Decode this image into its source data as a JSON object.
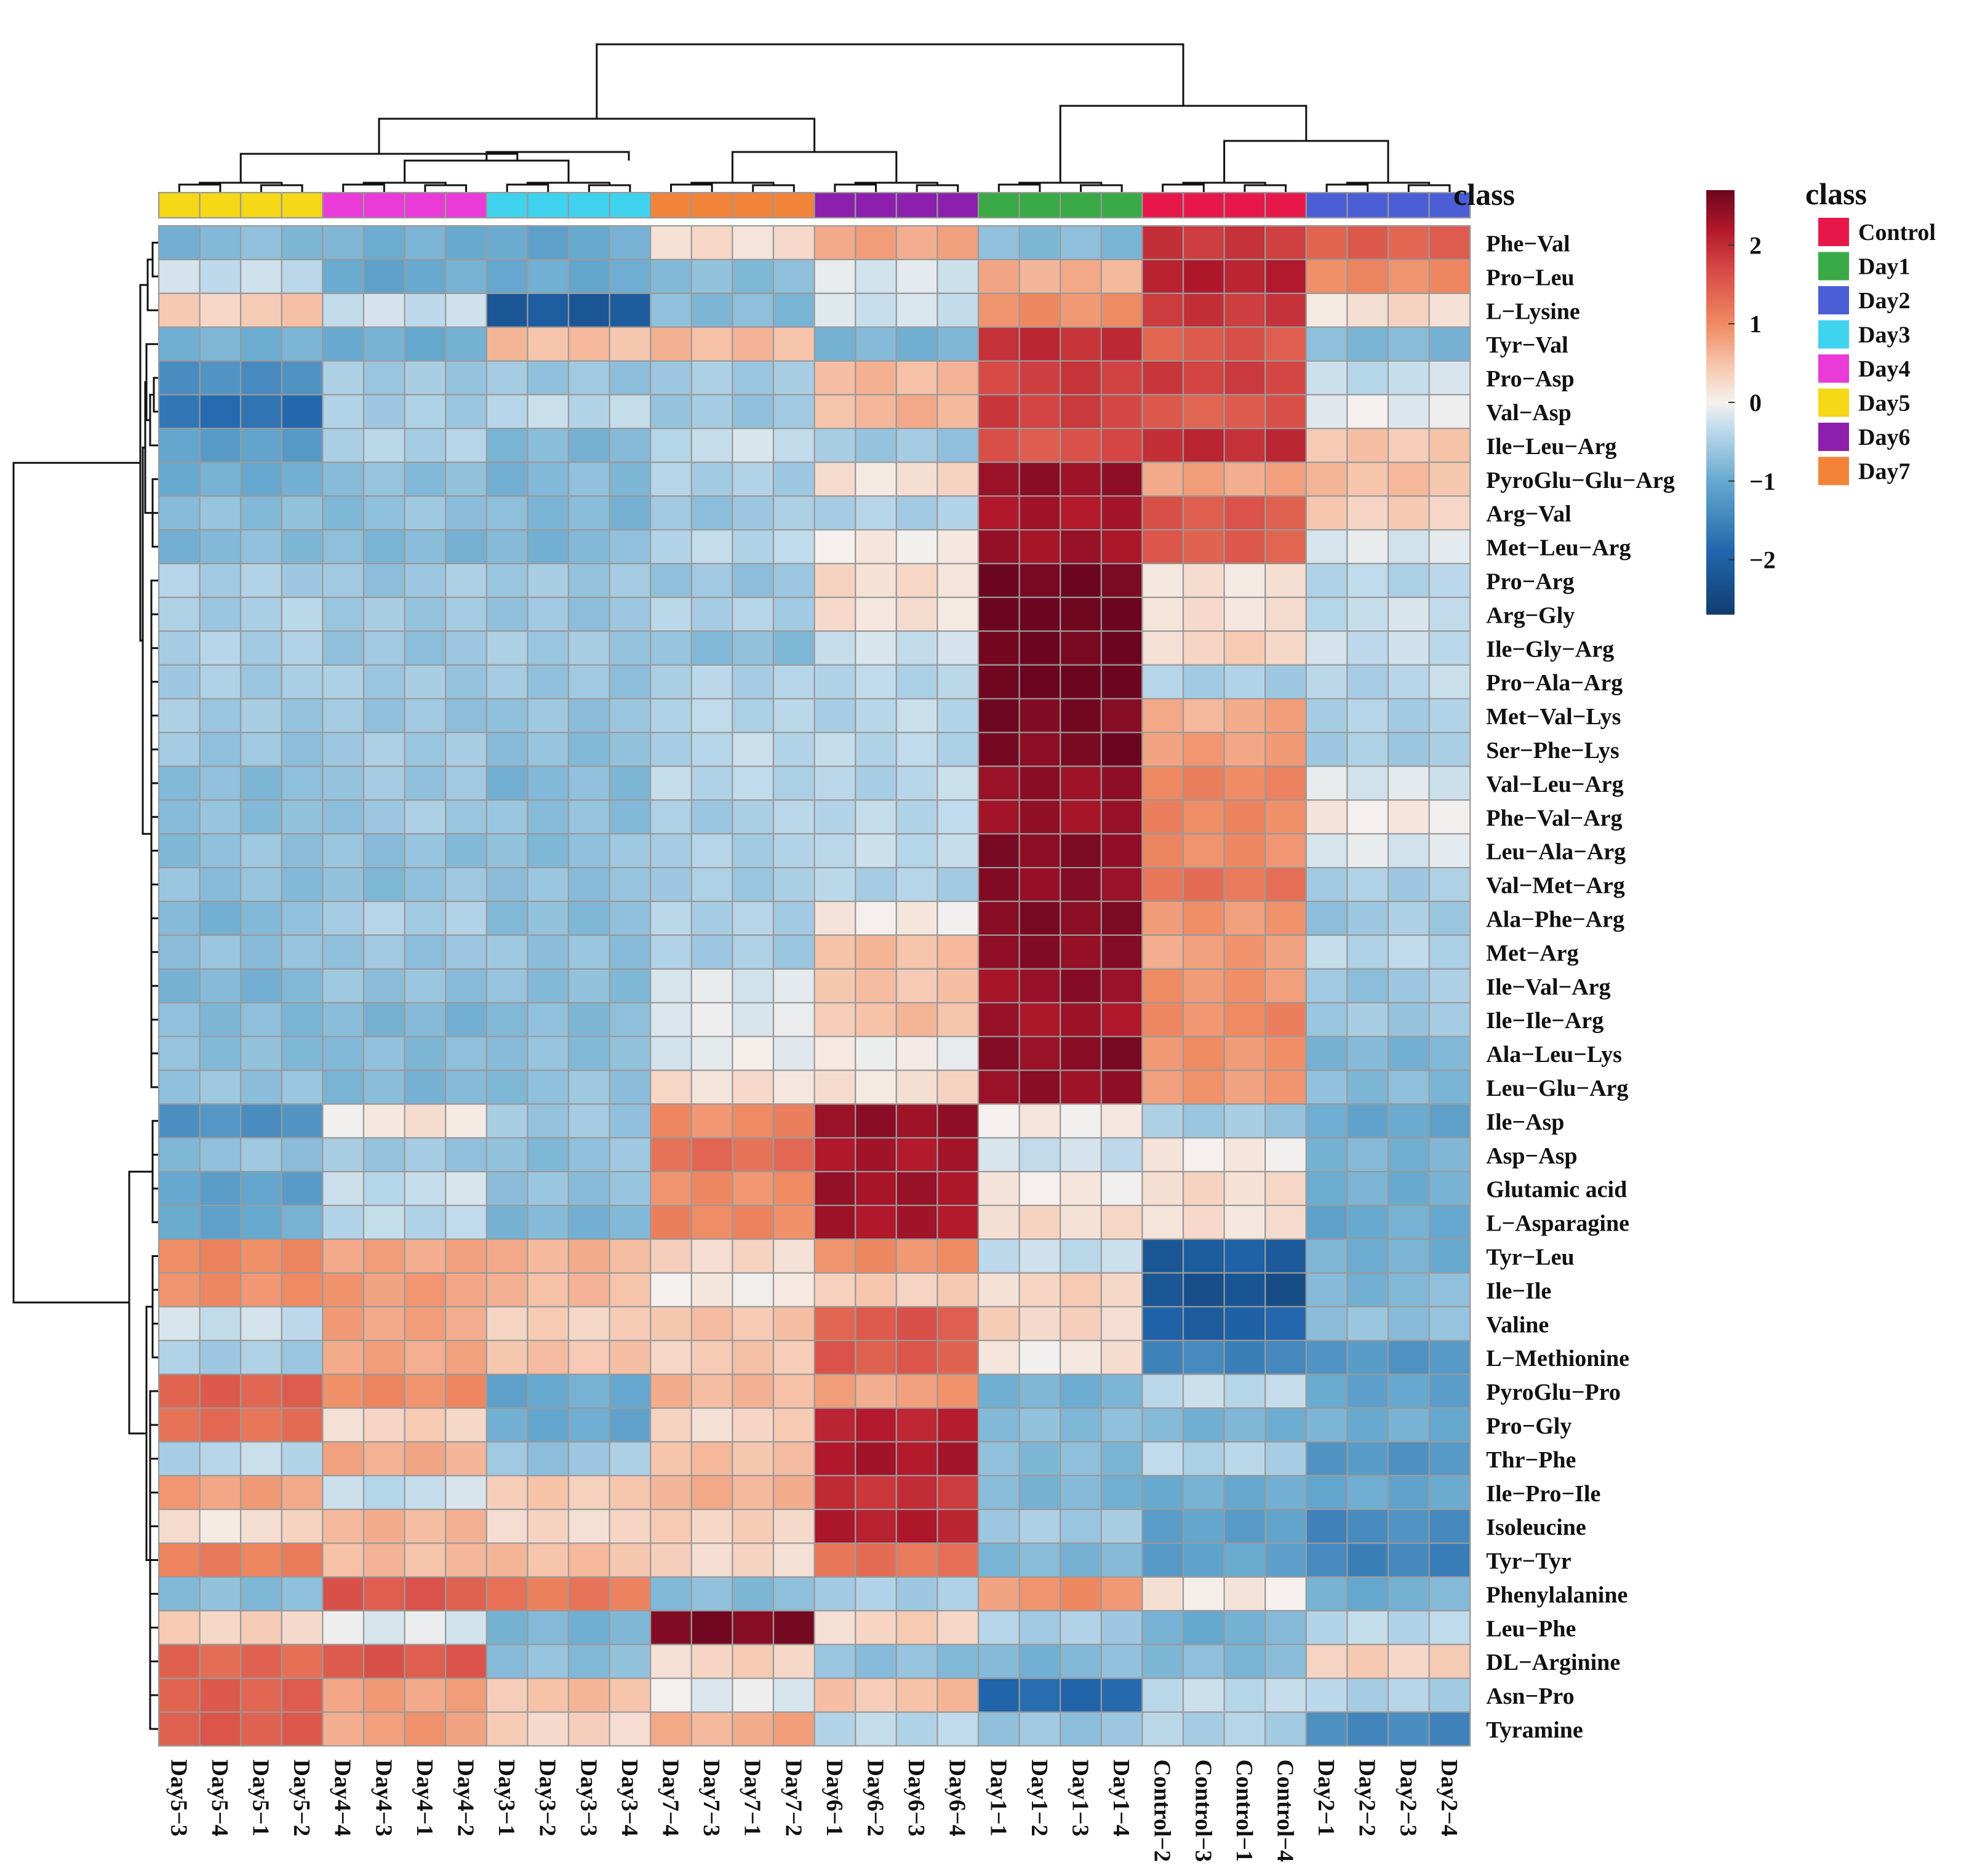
{
  "chart_data": {
    "type": "heatmap",
    "columns": [
      "Day5-3",
      "Day5-4",
      "Day5-1",
      "Day5-2",
      "Day4-4",
      "Day4-3",
      "Day4-1",
      "Day4-2",
      "Day3-1",
      "Day3-2",
      "Day3-3",
      "Day3-4",
      "Day7-4",
      "Day7-3",
      "Day7-1",
      "Day7-2",
      "Day6-1",
      "Day6-2",
      "Day6-3",
      "Day6-4",
      "Day1-1",
      "Day1-2",
      "Day1-3",
      "Day1-4",
      "Control-2",
      "Control-3",
      "Control-1",
      "Control-4",
      "Day2-1",
      "Day2-2",
      "Day2-3",
      "Day2-4"
    ],
    "column_class": [
      "Day5",
      "Day5",
      "Day5",
      "Day5",
      "Day4",
      "Day4",
      "Day4",
      "Day4",
      "Day3",
      "Day3",
      "Day3",
      "Day3",
      "Day7",
      "Day7",
      "Day7",
      "Day7",
      "Day6",
      "Day6",
      "Day6",
      "Day6",
      "Day1",
      "Day1",
      "Day1",
      "Day1",
      "Control",
      "Control",
      "Control",
      "Control",
      "Day2",
      "Day2",
      "Day2",
      "Day2"
    ],
    "rows": [
      "Phe−Val",
      "Pro−Leu",
      "L−Lysine",
      "Tyr−Val",
      "Pro−Asp",
      "Val−Asp",
      "Ile−Leu−Arg",
      "PyroGlu−Glu−Arg",
      "Arg−Val",
      "Met−Leu−Arg",
      "Pro−Arg",
      "Arg−Gly",
      "Ile−Gly−Arg",
      "Pro−Ala−Arg",
      "Met−Val−Lys",
      "Ser−Phe−Lys",
      "Val−Leu−Arg",
      "Phe−Val−Arg",
      "Leu−Ala−Arg",
      "Val−Met−Arg",
      "Ala−Phe−Arg",
      "Met−Arg",
      "Ile−Val−Arg",
      "Ile−Ile−Arg",
      "Ala−Leu−Lys",
      "Leu−Glu−Arg",
      "Ile−Asp",
      "Asp−Asp",
      "Glutamic acid",
      "L−Asparagine",
      "Tyr−Leu",
      "Ile−Ile",
      "Valine",
      "L−Methionine",
      "PyroGlu−Pro",
      "Pro−Gly",
      "Thr−Phe",
      "Ile−Pro−Ile",
      "Isoleucine",
      "Tyr−Tyr",
      "Phenylalanine",
      "Leu−Phe",
      "DL−Arginine",
      "Asn−Pro",
      "Tyramine"
    ],
    "group_values": [
      [
        -0.8,
        -0.9,
        -1.0,
        0.2,
        0.8,
        -0.8,
        1.9,
        1.4
      ],
      [
        -0.3,
        -1.0,
        -1.0,
        -0.7,
        -0.2,
        0.7,
        2.1,
        1.0
      ],
      [
        0.4,
        -0.3,
        -2.1,
        -0.8,
        -0.2,
        0.9,
        1.9,
        0.2
      ],
      [
        -0.9,
        -0.9,
        0.5,
        0.6,
        -0.9,
        2.0,
        1.5,
        -0.8
      ],
      [
        -1.3,
        -0.6,
        -0.6,
        -0.6,
        0.6,
        1.8,
        1.8,
        -0.3
      ],
      [
        -1.8,
        -0.5,
        -0.4,
        -0.6,
        0.6,
        1.8,
        1.5,
        -0.1
      ],
      [
        -1.1,
        -0.5,
        -0.8,
        -0.3,
        -0.6,
        1.6,
        2.0,
        0.5
      ],
      [
        -1.0,
        -0.7,
        -0.8,
        -0.5,
        0.2,
        2.4,
        0.8,
        0.5
      ],
      [
        -0.7,
        -0.7,
        -0.8,
        -0.6,
        -0.5,
        2.3,
        1.5,
        0.4
      ],
      [
        -0.8,
        -0.8,
        -0.8,
        -0.4,
        0.1,
        2.3,
        1.5,
        -0.2
      ],
      [
        -0.5,
        -0.6,
        -0.6,
        -0.6,
        0.2,
        2.7,
        0.1,
        -0.4
      ],
      [
        -0.5,
        -0.6,
        -0.6,
        -0.5,
        0.2,
        2.7,
        0.2,
        -0.3
      ],
      [
        -0.5,
        -0.6,
        -0.6,
        -0.7,
        -0.3,
        2.7,
        0.3,
        -0.3
      ],
      [
        -0.5,
        -0.6,
        -0.6,
        -0.5,
        -0.4,
        2.8,
        -0.5,
        -0.4
      ],
      [
        -0.6,
        -0.6,
        -0.7,
        -0.4,
        -0.4,
        2.6,
        0.7,
        -0.5
      ],
      [
        -0.6,
        -0.6,
        -0.7,
        -0.4,
        -0.4,
        2.6,
        0.8,
        -0.5
      ],
      [
        -0.8,
        -0.6,
        -0.8,
        -0.4,
        -0.4,
        2.4,
        1.1,
        -0.2
      ],
      [
        -0.7,
        -0.6,
        -0.7,
        -0.5,
        -0.4,
        2.4,
        1.0,
        0.1
      ],
      [
        -0.7,
        -0.7,
        -0.7,
        -0.5,
        -0.3,
        2.5,
        1.0,
        -0.2
      ],
      [
        -0.7,
        -0.7,
        -0.7,
        -0.5,
        -0.5,
        2.5,
        1.2,
        -0.5
      ],
      [
        -0.8,
        -0.5,
        -0.7,
        -0.5,
        0.1,
        2.5,
        0.9,
        -0.6
      ],
      [
        -0.7,
        -0.6,
        -0.7,
        -0.5,
        0.5,
        2.5,
        0.8,
        -0.4
      ],
      [
        -0.8,
        -0.7,
        -0.7,
        -0.2,
        0.5,
        2.4,
        0.9,
        -0.6
      ],
      [
        -0.8,
        -0.8,
        -0.8,
        -0.1,
        0.5,
        2.3,
        1.0,
        -0.6
      ],
      [
        -0.7,
        -0.8,
        -0.7,
        -0.1,
        0.0,
        2.5,
        0.9,
        -0.8
      ],
      [
        -0.7,
        -0.8,
        -0.7,
        0.2,
        0.2,
        2.4,
        0.9,
        -0.8
      ],
      [
        -1.3,
        0.1,
        -0.6,
        1.0,
        2.4,
        0.1,
        -0.6,
        -1.0
      ],
      [
        -0.7,
        -0.6,
        -0.7,
        1.3,
        2.3,
        -0.3,
        0.1,
        -0.9
      ],
      [
        -1.1,
        -0.3,
        -0.7,
        1.0,
        2.3,
        0.1,
        0.2,
        -0.9
      ],
      [
        -1.0,
        -0.4,
        -0.8,
        1.0,
        2.3,
        0.2,
        0.2,
        -1.0
      ],
      [
        1.0,
        0.8,
        0.6,
        0.3,
        0.9,
        -0.3,
        -2.1,
        -0.9
      ],
      [
        1.0,
        0.8,
        0.6,
        0.0,
        0.4,
        0.3,
        -2.3,
        -0.8
      ],
      [
        -0.3,
        0.8,
        0.3,
        0.5,
        1.5,
        0.3,
        -2.0,
        -0.7
      ],
      [
        -0.5,
        0.7,
        0.5,
        0.4,
        1.5,
        0.1,
        -1.5,
        -1.2
      ],
      [
        1.4,
        1.0,
        -1.0,
        0.6,
        0.8,
        -0.9,
        -0.3,
        -1.1
      ],
      [
        1.3,
        0.3,
        -1.0,
        0.3,
        2.1,
        -0.7,
        -0.9,
        -0.9
      ],
      [
        -0.4,
        0.7,
        -0.6,
        0.5,
        2.3,
        -0.8,
        -0.4,
        -1.3
      ],
      [
        0.8,
        -0.3,
        0.4,
        0.7,
        1.9,
        -0.8,
        -1.0,
        -1.0
      ],
      [
        0.2,
        0.6,
        0.3,
        0.3,
        2.2,
        -0.6,
        -1.1,
        -1.4
      ],
      [
        1.1,
        0.6,
        0.5,
        0.3,
        1.2,
        -0.8,
        -1.1,
        -1.5
      ],
      [
        -0.7,
        1.5,
        1.2,
        -0.8,
        -0.5,
        0.9,
        0.1,
        -0.9
      ],
      [
        0.3,
        -0.1,
        -0.9,
        2.6,
        0.3,
        -0.5,
        -0.9,
        -0.4
      ],
      [
        1.4,
        1.5,
        -0.7,
        0.3,
        -0.7,
        -0.8,
        -0.8,
        0.4
      ],
      [
        1.4,
        0.8,
        0.5,
        -0.1,
        0.5,
        -1.9,
        -0.3,
        -0.5
      ],
      [
        1.5,
        0.8,
        0.3,
        0.7,
        -0.4,
        -0.6,
        -0.5,
        -1.4
      ]
    ],
    "row_labels_side": "right",
    "column_labels_side": "bottom",
    "annotation": {
      "title": "class",
      "legend_title": "class",
      "legend_entries": [
        {
          "name": "Control",
          "color": "#e8174a"
        },
        {
          "name": "Day1",
          "color": "#3aaa46"
        },
        {
          "name": "Day2",
          "color": "#4b5ed6"
        },
        {
          "name": "Day3",
          "color": "#3fd3ef"
        },
        {
          "name": "Day4",
          "color": "#ea3ad8"
        },
        {
          "name": "Day5",
          "color": "#f5d816"
        },
        {
          "name": "Day6",
          "color": "#8c1fac"
        },
        {
          "name": "Day7",
          "color": "#f2843a"
        }
      ]
    },
    "colorbar": {
      "range": [
        -2.7,
        2.7
      ],
      "ticks": [
        -2,
        -1,
        0,
        1,
        2
      ],
      "tick_labels": [
        "−2",
        "−1",
        "0",
        "1",
        "2"
      ],
      "low_color": "#113d70",
      "mid_color": "#f5f1ee",
      "high_color": "#6c0620"
    },
    "dendrograms": {
      "rows": true,
      "columns": true
    }
  }
}
